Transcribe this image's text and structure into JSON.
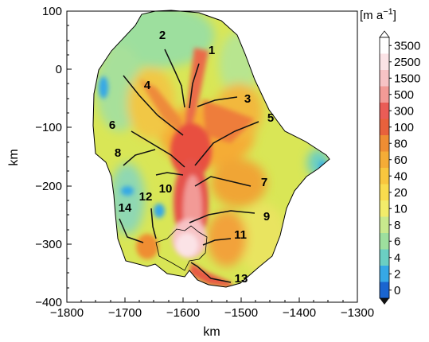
{
  "map": {
    "x_axis": {
      "label": "km",
      "ticks": [
        "−1800",
        "−1700",
        "−1600",
        "−1500",
        "−1400",
        "−1300"
      ]
    },
    "y_axis": {
      "label": "km",
      "ticks": [
        "100",
        "0",
        "−100",
        "−200",
        "−300",
        "−400"
      ]
    },
    "flowline_labels": [
      "1",
      "2",
      "3",
      "4",
      "5",
      "6",
      "7",
      "8",
      "9",
      "10",
      "11",
      "12",
      "13",
      "14"
    ]
  },
  "colorbar": {
    "unit": "[m a",
    "unit_sup": "−1",
    "unit_close": "]",
    "ticks": [
      "3500",
      "2500",
      "1500",
      "500",
      "300",
      "100",
      "80",
      "60",
      "40",
      "20",
      "10",
      "8",
      "6",
      "4",
      "2",
      "0"
    ],
    "colors": [
      "#ffffff",
      "#fbe3e6",
      "#f7c3c5",
      "#f29a96",
      "#ea5c56",
      "#e8613c",
      "#ef8d33",
      "#f5ac36",
      "#f8c63e",
      "#f9dc4e",
      "#f2ec6a",
      "#c9e98d",
      "#9ddf9e",
      "#6bcfc3",
      "#36a8e6",
      "#1a65cf"
    ]
  }
}
